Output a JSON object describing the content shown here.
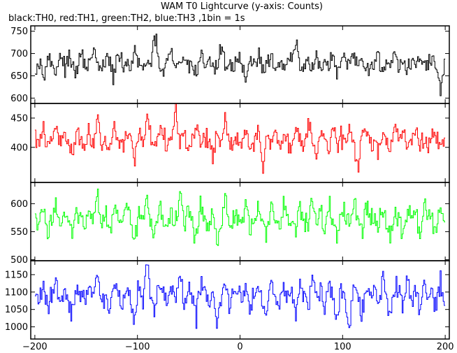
{
  "chart_data": {
    "type": "line",
    "title": "WAM T0 Lightcurve (y-axis: Counts)",
    "subtitle": "black:TH0, red:TH1, green:TH2, blue:TH3 ,1bin = 1s",
    "x_range": [
      -204,
      204
    ],
    "x_ticks": [
      -200,
      -100,
      0,
      100,
      200
    ],
    "x_tick_labels": [
      "−200",
      "−100",
      "0",
      "100",
      "200"
    ],
    "panels": [
      {
        "channel": "TH0",
        "color": "#000000",
        "y_range": [
          588,
          762
        ],
        "y_ticks": [
          600,
          650,
          700,
          750
        ],
        "y_tick_labels": [
          "600",
          "650",
          "700",
          "750"
        ],
        "mean": 675,
        "spread": 22,
        "x_start": -200,
        "x_end": 200,
        "values": [
          672,
          681,
          663,
          690,
          675,
          659,
          702,
          668,
          684,
          671,
          657,
          695,
          680,
          666,
          712,
          673,
          661,
          688,
          679,
          650,
          697,
          670,
          683,
          664,
          705,
          676,
          658,
          691,
          668,
          740,
          672,
          655,
          686,
          699,
          662,
          678,
          694,
          667,
          681,
          653,
          700,
          674,
          689,
          660,
          676,
          715,
          671,
          684,
          663,
          692,
          678,
          647,
          686,
          672,
          701,
          665,
          680,
          694,
          669,
          683,
          658,
          676,
          690,
          721,
          672,
          664,
          687,
          675,
          699,
          661,
          681,
          670,
          693,
          656,
          678,
          685,
          667,
          700,
          674,
          689,
          662,
          680,
          671,
          695,
          659,
          684,
          677,
          706,
          668,
          682,
          654,
          690,
          673,
          697,
          666,
          681,
          688,
          670,
          611,
          683
        ]
      },
      {
        "channel": "TH1",
        "color": "#ff0000",
        "y_range": [
          340,
          475
        ],
        "y_ticks": [
          400,
          450
        ],
        "y_tick_labels": [
          "400",
          "450"
        ],
        "mean": 412,
        "spread": 18,
        "x_start": -200,
        "x_end": 200,
        "values": [
          418,
          405,
          430,
          396,
          412,
          441,
          401,
          424,
          409,
          387,
          433,
          415,
          399,
          426,
          410,
          452,
          404,
          419,
          392,
          437,
          413,
          400,
          428,
          417,
          383,
          422,
          408,
          444,
          411,
          397,
          431,
          414,
          403,
          420,
          465,
          406,
          425,
          391,
          416,
          434,
          402,
          419,
          411,
          388,
          429,
          409,
          446,
          398,
          421,
          413,
          405,
          432,
          394,
          418,
          427,
          360,
          415,
          408,
          436,
          401,
          422,
          412,
          395,
          430,
          417,
          404,
          449,
          410,
          393,
          424,
          414,
          403,
          439,
          407,
          420,
          398,
          427,
          411,
          362,
          419,
          433,
          405,
          416,
          390,
          428,
          413,
          402,
          442,
          409,
          421,
          396,
          417,
          431,
          406,
          414,
          392,
          426,
          411,
          403,
          420
        ]
      },
      {
        "channel": "TH2",
        "color": "#00ff00",
        "y_range": [
          498,
          638
        ],
        "y_ticks": [
          500,
          550,
          600
        ],
        "y_tick_labels": [
          "500",
          "550",
          "600"
        ],
        "mean": 568,
        "spread": 22,
        "x_start": -200,
        "x_end": 200,
        "values": [
          575,
          560,
          592,
          548,
          571,
          605,
          556,
          583,
          566,
          540,
          597,
          570,
          553,
          588,
          564,
          619,
          558,
          579,
          545,
          601,
          572,
          555,
          590,
          567,
          533,
          586,
          561,
          610,
          569,
          549,
          596,
          574,
          557,
          582,
          563,
          628,
          551,
          589,
          568,
          538,
          599,
          571,
          554,
          585,
          518,
          565,
          607,
          550,
          580,
          573,
          559,
          594,
          546,
          577,
          588,
          562,
          541,
          603,
          569,
          556,
          591,
          566,
          580,
          547,
          598,
          572,
          555,
          617,
          563,
          584,
          551,
          595,
          567,
          537,
          587,
          575,
          558,
          606,
          565,
          549,
          592,
          570,
          583,
          553,
          600,
          561,
          544,
          589,
          574,
          556,
          597,
          568,
          581,
          539,
          593,
          566,
          576,
          552,
          602,
          562
        ]
      },
      {
        "channel": "TH3",
        "color": "#0000ff",
        "y_range": [
          965,
          1190
        ],
        "y_ticks": [
          1000,
          1050,
          1100,
          1150
        ],
        "y_tick_labels": [
          "1000",
          "1050",
          "1100",
          "1150"
        ],
        "mean": 1085,
        "spread": 35,
        "x_start": -200,
        "x_end": 200,
        "values": [
          1090,
          1072,
          1118,
          1060,
          1098,
          1135,
          1065,
          1104,
          1081,
          1043,
          1126,
          1088,
          1069,
          1112,
          1079,
          1160,
          1057,
          1101,
          1038,
          1132,
          1093,
          1066,
          1115,
          1084,
          1021,
          1108,
          1075,
          1188,
          1092,
          1050,
          1121,
          1097,
          1061,
          1110,
          1080,
          1145,
          1055,
          1113,
          1087,
          1030,
          1128,
          1094,
          1067,
          1105,
          1002,
          1083,
          1141,
          1059,
          1100,
          1091,
          1070,
          1124,
          1046,
          1102,
          1116,
          1073,
          1034,
          1137,
          1089,
          1062,
          1119,
          1078,
          1106,
          1048,
          1130,
          1095,
          1064,
          1152,
          1076,
          1109,
          1053,
          1122,
          1085,
          1026,
          1111,
          1099,
          985,
          1139,
          1082,
          1045,
          1117,
          1086,
          1107,
          1058,
          1133,
          1071,
          1040,
          1114,
          1096,
          1063,
          1127,
          1080,
          1103,
          1033,
          1123,
          1074,
          1097,
          1052,
          1131,
          1068
        ]
      }
    ]
  }
}
